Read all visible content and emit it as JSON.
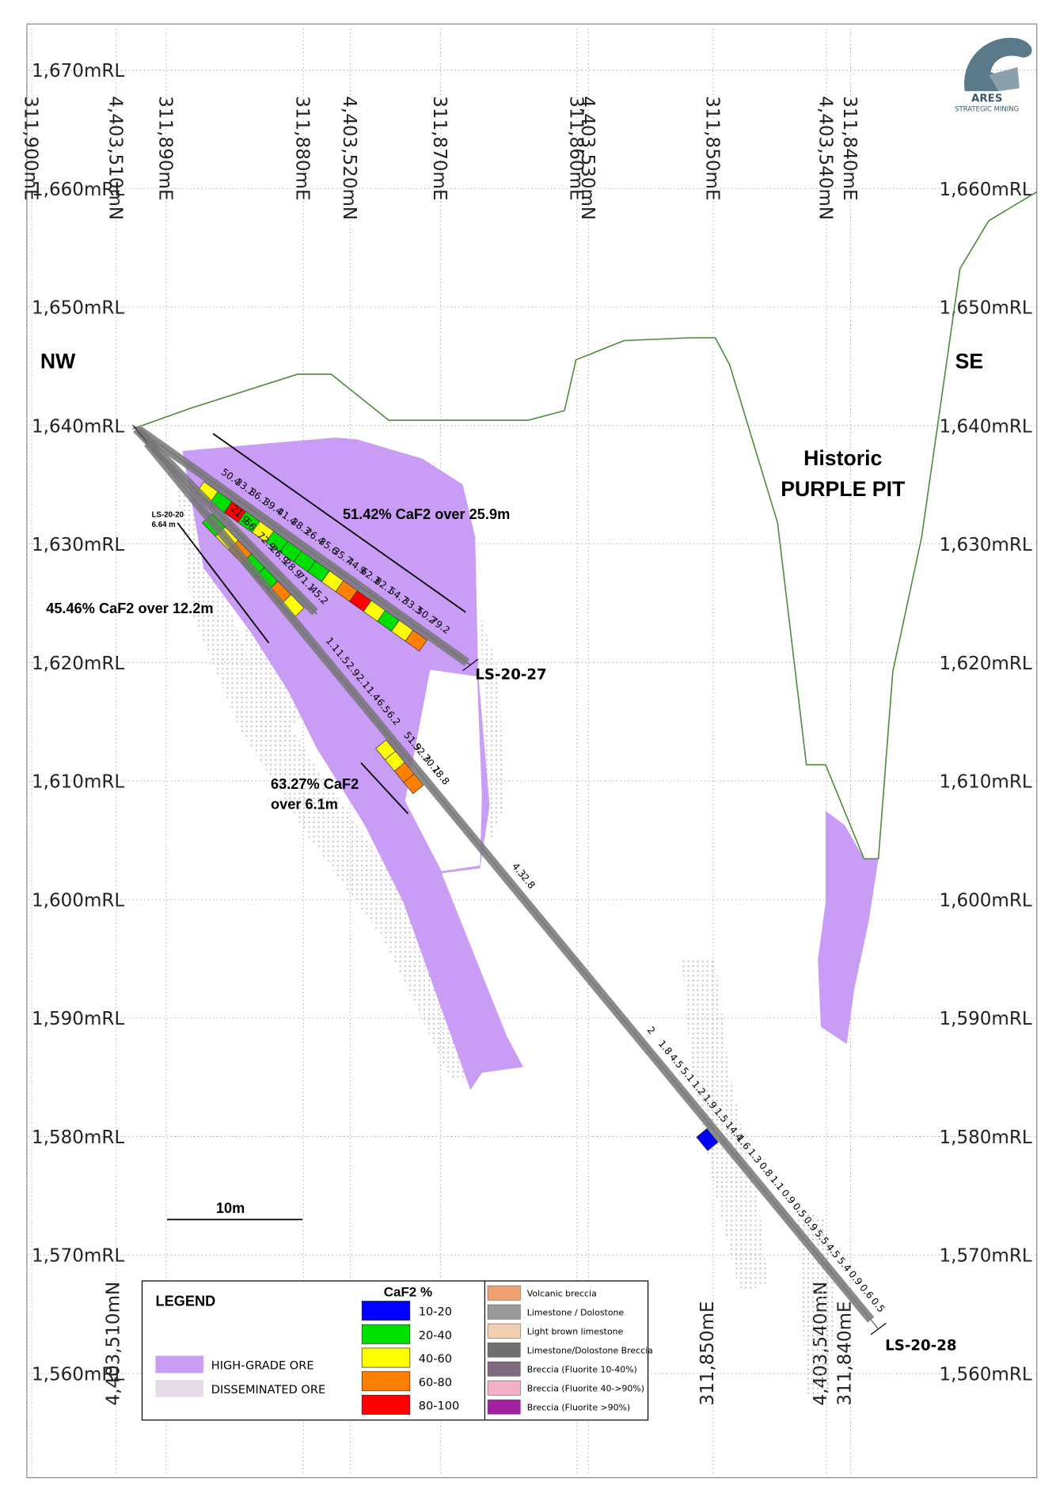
{
  "logo": {
    "name": "ARES",
    "tagline": "STRATEGIC MINING"
  },
  "rl_labels": [
    "1,670mRL",
    "1,660mRL",
    "1,650mRL",
    "1,640mRL",
    "1,630mRL",
    "1,620mRL",
    "1,610mRL",
    "1,600mRL",
    "1,590mRL",
    "1,580mRL",
    "1,570mRL",
    "1,560mRL"
  ],
  "top_grid_labels": [
    "311,900mE",
    "4,403,510mN",
    "311,890mE",
    "311,880mE",
    "4,403,520mN",
    "311,870mE",
    "311,860mE",
    "4,403,530mN",
    "311,850mE",
    "4,403,540mN",
    "311,840mE"
  ],
  "bottom_grid_labels": [
    "4,403,510mN",
    "311,850mE",
    "4,403,540mN",
    "311,840mE"
  ],
  "directions": {
    "left": "NW",
    "right": "SE"
  },
  "pit_label": [
    "Historic",
    "PURPLE PIT"
  ],
  "intercepts": [
    "51.42% CaF2 over 25.9m",
    "45.46% CaF2 over 12.2m",
    "63.27% CaF2",
    "over 6.1m"
  ],
  "collar_labels": [
    "LS-20-20",
    "6.64 m"
  ],
  "holes": [
    {
      "name": "LS-20-27",
      "values": [
        50.4,
        33.1,
        86.1,
        39.4,
        41.4,
        38.3,
        26.4,
        35.6,
        35.7,
        44.9,
        62.3,
        82.1,
        54.7,
        33.3,
        50.2,
        79.2
      ],
      "colors": [
        "#ffff00",
        "#00e000",
        "#ff0000",
        "#00e000",
        "#ffff00",
        "#00e000",
        "#00e000",
        "#00e000",
        "#00e000",
        "#ffff00",
        "#ff8000",
        "#ff0000",
        "#ffff00",
        "#00e000",
        "#ffff00",
        "#ff8000"
      ]
    },
    {
      "values": [
        21.9,
        56,
        72.9,
        26.9,
        28.9,
        71.1,
        45.2
      ],
      "colors": [
        "#00e000",
        "#ffff00",
        "#ff8000",
        "#00e000",
        "#00e000",
        "#ff8000",
        "#ffff00"
      ]
    },
    {
      "name": "LS-20-28",
      "values": [
        1.1,
        1.5,
        2.9,
        2.1,
        1.4,
        6.5,
        6.2,
        51.9,
        52.3,
        70.1,
        78.8,
        4.3,
        2.8,
        2,
        1.8,
        4.5,
        5.1,
        1.2,
        1.9,
        1.5,
        14.4,
        1.6,
        1.3,
        0.8,
        1.1,
        0.9,
        0.5,
        0.9,
        5.5,
        4.5,
        5.4,
        0.9,
        0.6,
        0.5
      ],
      "colors": [
        null,
        null,
        null,
        null,
        null,
        null,
        null,
        "#ffff00",
        "#ffff00",
        "#ff8000",
        "#ff8000",
        null,
        null,
        null,
        null,
        null,
        null,
        null,
        null,
        null,
        "#0000ff",
        null,
        null,
        null,
        null,
        null,
        null,
        null,
        null,
        null,
        null,
        null,
        null,
        null
      ]
    }
  ],
  "scale_bar": "10m",
  "legend": {
    "title": "LEGEND",
    "grade_title": "CaF2 %",
    "grades": [
      {
        "label": "10-20",
        "color": "#0000ff"
      },
      {
        "label": "20-40",
        "color": "#00e000"
      },
      {
        "label": "40-60",
        "color": "#ffff00"
      },
      {
        "label": "60-80",
        "color": "#ff8000"
      },
      {
        "label": "80-100",
        "color": "#ff0000"
      }
    ],
    "ore": [
      {
        "label": "HIGH-GRADE ORE",
        "color": "#c99cf5"
      },
      {
        "label": "DISSEMINATED ORE",
        "color": "#e6dce8"
      }
    ],
    "lithology": [
      {
        "label": "Volcanic breccia",
        "color": "#f0a070"
      },
      {
        "label": "Limestone / Dolostone",
        "color": "#9a9a9a"
      },
      {
        "label": "Light brown limestone",
        "color": "#f2cfb0"
      },
      {
        "label": "Limestone/Dolostone Breccia",
        "color": "#707070"
      },
      {
        "label": "Breccia (Fluorite 10-40%)",
        "color": "#806a80"
      },
      {
        "label": "Breccia (Fluorite 40->90%)",
        "color": "#f4b0c8"
      },
      {
        "label": "Breccia (Fluorite >90%)",
        "color": "#a020a0"
      }
    ]
  }
}
